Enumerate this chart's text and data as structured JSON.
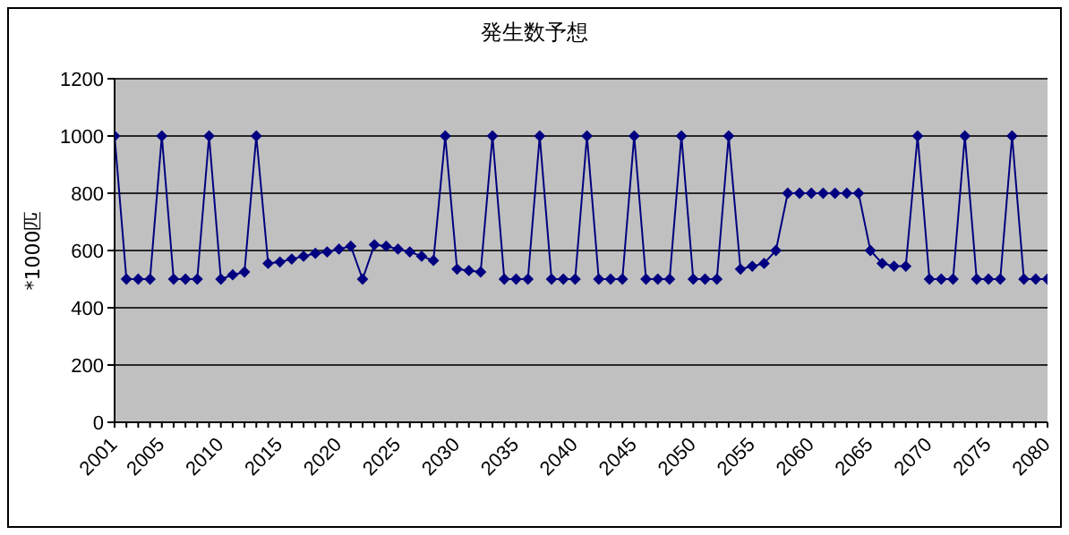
{
  "chart_data": {
    "type": "line",
    "title": "発生数予想",
    "ylabel": "*1000匹",
    "categories": [
      "2001",
      null,
      null,
      null,
      "2005",
      null,
      null,
      null,
      null,
      "2010",
      null,
      null,
      null,
      null,
      "2015",
      null,
      null,
      null,
      null,
      "2020",
      null,
      null,
      null,
      null,
      "2025",
      null,
      null,
      null,
      null,
      "2030",
      null,
      null,
      null,
      null,
      "2035",
      null,
      null,
      null,
      null,
      "2040",
      null,
      null,
      null,
      null,
      "2045",
      null,
      null,
      null,
      null,
      "2050",
      null,
      null,
      null,
      null,
      "2055",
      null,
      null,
      null,
      null,
      "2060",
      null,
      null,
      null,
      null,
      "2065",
      null,
      null,
      null,
      null,
      "2070",
      null,
      null,
      null,
      null,
      "2075",
      null,
      null,
      null,
      null,
      "2080"
    ],
    "series": [
      {
        "color": "#000080",
        "values": [
          1000,
          500,
          500,
          500,
          1000,
          500,
          500,
          500,
          1000,
          500,
          515,
          525,
          1000,
          555,
          560,
          570,
          580,
          590,
          595,
          605,
          615,
          500,
          620,
          615,
          605,
          595,
          580,
          565,
          1000,
          535,
          530,
          525,
          1000,
          500,
          500,
          500,
          1000,
          500,
          500,
          500,
          1000,
          500,
          500,
          500,
          1000,
          500,
          500,
          500,
          1000,
          500,
          500,
          500,
          1000,
          535,
          545,
          555,
          600,
          800,
          800,
          800,
          800,
          800,
          800,
          800,
          600,
          555,
          545,
          545,
          1000,
          500,
          500,
          500,
          1000,
          500,
          500,
          500,
          1000,
          500,
          500,
          500
        ]
      }
    ],
    "ylim": [
      0,
      1200
    ],
    "yticks": [
      0,
      200,
      400,
      600,
      800,
      1000,
      1200
    ],
    "grid": "y",
    "marker": "diamond",
    "line_style": "solid"
  }
}
